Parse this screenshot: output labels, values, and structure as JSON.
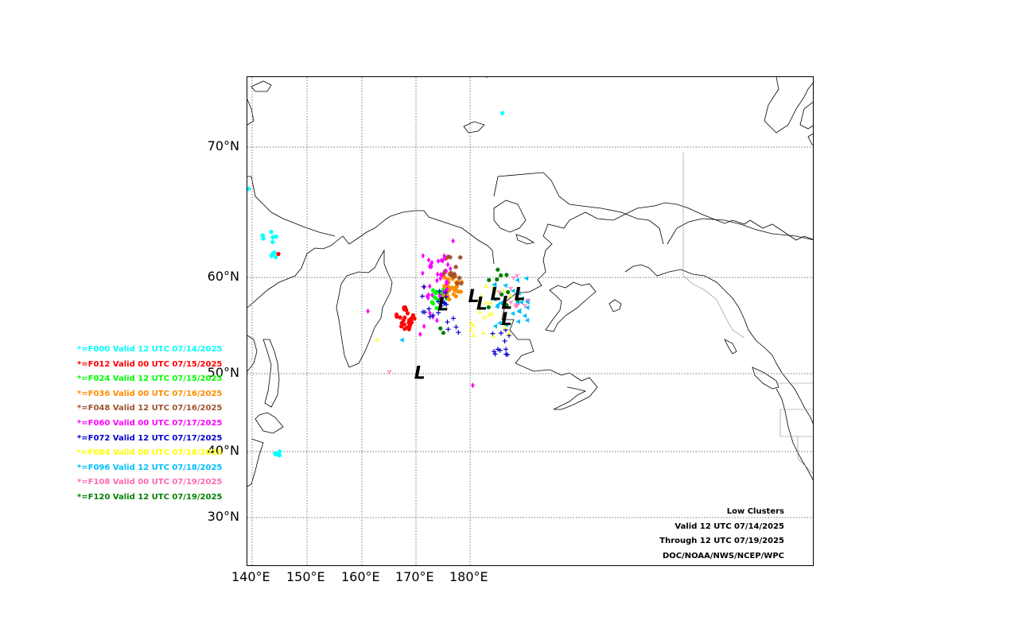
{
  "map": {
    "projection": "stereographic",
    "lat_labels": [
      "70°N",
      "60°N",
      "50°N",
      "40°N",
      "30°N"
    ],
    "lon_labels": [
      "140°E",
      "150°E",
      "160°E",
      "170°E",
      "180°E"
    ],
    "graticule": "dotted"
  },
  "legend": {
    "items": [
      {
        "text": "*=F000 Valid 12 UTC 07/14/2025",
        "color": "#00ffff"
      },
      {
        "text": "*=F012 Valid 00 UTC 07/15/2025",
        "color": "#ff0000"
      },
      {
        "text": "*=F024 Valid 12 UTC 07/15/2025",
        "color": "#00ff00"
      },
      {
        "text": "*=F036 Valid 00 UTC 07/16/2025",
        "color": "#ff8c00"
      },
      {
        "text": "*=F048 Valid 12 UTC 07/16/2025",
        "color": "#a0522d"
      },
      {
        "text": "*=F060 Valid 00 UTC 07/17/2025",
        "color": "#ff00ff"
      },
      {
        "text": "*=F072 Valid 12 UTC 07/17/2025",
        "color": "#0000cd"
      },
      {
        "text": "*=F084 Valid 00 UTC 07/18/2025",
        "color": "#ffff00"
      },
      {
        "text": "*=F096 Valid 12 UTC 07/18/2025",
        "color": "#00bfff"
      },
      {
        "text": "*=F108 Valid 00 UTC 07/19/2025",
        "color": "#ff69b4"
      },
      {
        "text": "*=F120 Valid 12 UTC 07/19/2025",
        "color": "#008000"
      }
    ]
  },
  "info": {
    "title": "Low Clusters",
    "valid": "Valid 12 UTC 07/14/2025",
    "through": "Through 12 UTC 07/19/2025",
    "source": "DOC/NOAA/NWS/NCEP/WPC"
  },
  "cluster_centers": {
    "symbol": "L",
    "color": "#000000",
    "points": [
      {
        "lon": 175,
        "lat": 57.3
      },
      {
        "lon": 180.5,
        "lat": 58.2
      },
      {
        "lon": 182,
        "lat": 57.4
      },
      {
        "lon": 184.5,
        "lat": 58.4
      },
      {
        "lon": 186.5,
        "lat": 57.5
      },
      {
        "lon": 186.5,
        "lat": 55.8
      },
      {
        "lon": 188.8,
        "lat": 58.4
      },
      {
        "lon": 170.5,
        "lat": 50.2
      }
    ]
  },
  "clusters": [
    {
      "forecast": "F000",
      "color": "#00ffff",
      "marker": "star",
      "groups": [
        {
          "lon": 144.5,
          "lat": 62.3,
          "n": 10,
          "spread": 1.2
        },
        {
          "lon": 142.6,
          "lat": 39.7,
          "n": 6,
          "spread": 0.4
        },
        {
          "lon": 141.5,
          "lat": 66.8,
          "n": 1,
          "spread": 0
        },
        {
          "lon": 185.5,
          "lat": 72.6,
          "n": 1,
          "spread": 0
        }
      ]
    },
    {
      "forecast": "F012",
      "color": "#ff0000",
      "marker": "dot",
      "groups": [
        {
          "lon": 168.3,
          "lat": 55.8,
          "n": 26,
          "spread": 1.2
        },
        {
          "lon": 146,
          "lat": 61.8,
          "n": 1,
          "spread": 0
        },
        {
          "lon": 139.5,
          "lat": 68.5,
          "n": 1,
          "spread": 0
        }
      ]
    },
    {
      "forecast": "F024",
      "color": "#00ff00",
      "marker": "dot",
      "groups": [
        {
          "lon": 174.5,
          "lat": 57.8,
          "n": 18,
          "spread": 1.0
        }
      ]
    },
    {
      "forecast": "F036",
      "color": "#ff8c00",
      "marker": "dot",
      "groups": [
        {
          "lon": 176.8,
          "lat": 59.0,
          "n": 32,
          "spread": 1.3
        }
      ]
    },
    {
      "forecast": "F048",
      "color": "#a0522d",
      "marker": "star",
      "groups": [
        {
          "lon": 176.8,
          "lat": 60.5,
          "n": 16,
          "spread": 1.2
        }
      ]
    },
    {
      "forecast": "F060",
      "color": "#ff00ff",
      "marker": "diamond",
      "groups": [
        {
          "lon": 174.2,
          "lat": 59.7,
          "n": 34,
          "spread": 2.0
        },
        {
          "lon": 172,
          "lat": 55,
          "n": 5,
          "spread": 1.5
        },
        {
          "lon": 161.5,
          "lat": 56.5,
          "n": 1,
          "spread": 0
        },
        {
          "lon": 180.5,
          "lat": 48.5,
          "n": 1,
          "spread": 0
        },
        {
          "lon": 177,
          "lat": 62.8,
          "n": 1,
          "spread": 0
        }
      ]
    },
    {
      "forecast": "F072",
      "color": "#0000cd",
      "marker": "plus",
      "groups": [
        {
          "lon": 173.5,
          "lat": 57.5,
          "n": 18,
          "spread": 1.6
        },
        {
          "lon": 186,
          "lat": 53.2,
          "n": 12,
          "spread": 1.4
        },
        {
          "lon": 177,
          "lat": 55.0,
          "n": 5,
          "spread": 0.9
        }
      ]
    },
    {
      "forecast": "F084",
      "color": "#ffff00",
      "marker": "tri",
      "groups": [
        {
          "lon": 184,
          "lat": 56.5,
          "n": 22,
          "spread": 2.8
        },
        {
          "lon": 163,
          "lat": 53.5,
          "n": 1,
          "spread": 0
        }
      ]
    },
    {
      "forecast": "F096",
      "color": "#00bfff",
      "marker": "triangle-left",
      "groups": [
        {
          "lon": 187,
          "lat": 57.5,
          "n": 28,
          "spread": 2.6
        },
        {
          "lon": 167.5,
          "lat": 53.5,
          "n": 1,
          "spread": 0
        }
      ]
    },
    {
      "forecast": "F108",
      "color": "#ff69b4",
      "marker": "tri-down",
      "groups": [
        {
          "lon": 188,
          "lat": 59.0,
          "n": 10,
          "spread": 2.0
        },
        {
          "lon": 165,
          "lat": 50.2,
          "n": 1,
          "spread": 0
        }
      ]
    },
    {
      "forecast": "F120",
      "color": "#008000",
      "marker": "dot",
      "groups": [
        {
          "lon": 186,
          "lat": 58.5,
          "n": 10,
          "spread": 2.2
        },
        {
          "lon": 175,
          "lat": 55,
          "n": 2,
          "spread": 0.8
        }
      ]
    }
  ]
}
